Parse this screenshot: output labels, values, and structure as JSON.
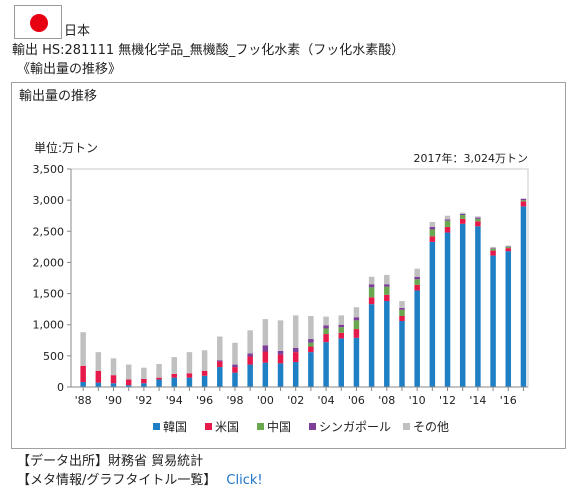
{
  "page": {
    "country": "日本",
    "hs_line": "輸出 HS:281111 無機化学品_無機酸_フッ化水素（フッ化水素酸）",
    "subtitle": "《輸出量の推移》",
    "source_label": "【データ出所】財務省 貿易統計",
    "meta_label": "【メタ情報/グラフタイトル一覧】",
    "meta_link": "Click!",
    "flag": {
      "field": "#ffffff",
      "disc": "#e60012"
    }
  },
  "chart_data": {
    "type": "bar",
    "stacked": true,
    "title": "輸出量の推移",
    "ylabel": "単位:万トン",
    "annotation": "2017年：3,024万トン",
    "ylim": [
      0,
      3500
    ],
    "yticks": [
      0,
      500,
      1000,
      1500,
      2000,
      2500,
      3000,
      3500
    ],
    "ytick_labels": [
      "0",
      "500",
      "1,000",
      "1,500",
      "2,000",
      "2,500",
      "3,000",
      "3,500"
    ],
    "grid": false,
    "legend_position": "bottom",
    "categories": [
      "1988",
      "1989",
      "1990",
      "1991",
      "1992",
      "1993",
      "1994",
      "1995",
      "1996",
      "1997",
      "1998",
      "1999",
      "2000",
      "2001",
      "2002",
      "2003",
      "2004",
      "2005",
      "2006",
      "2007",
      "2008",
      "2009",
      "2010",
      "2011",
      "2012",
      "2013",
      "2014",
      "2015",
      "2016",
      "2017"
    ],
    "x_tick_labels": [
      "'88",
      "",
      "'90",
      "",
      "'92",
      "",
      "'94",
      "",
      "'96",
      "",
      "'98",
      "",
      "'00",
      "",
      "'02",
      "",
      "'04",
      "",
      "'06",
      "",
      "'08",
      "",
      "'10",
      "",
      "'12",
      "",
      "'14",
      "",
      "'16",
      ""
    ],
    "series": [
      {
        "name": "韓国",
        "color": "#1f7fc4",
        "values": [
          80,
          70,
          60,
          30,
          60,
          120,
          150,
          150,
          180,
          320,
          230,
          360,
          390,
          380,
          400,
          560,
          720,
          780,
          790,
          1330,
          1380,
          1060,
          1550,
          2330,
          2480,
          2620,
          2580,
          2110,
          2180,
          2900
        ]
      },
      {
        "name": "米国",
        "color": "#e6194b",
        "values": [
          260,
          190,
          130,
          90,
          70,
          30,
          60,
          70,
          80,
          90,
          90,
          130,
          180,
          140,
          160,
          90,
          130,
          90,
          140,
          110,
          100,
          80,
          90,
          90,
          90,
          80,
          80,
          80,
          50,
          80
        ]
      },
      {
        "name": "中国",
        "color": "#6aa84f",
        "values": [
          0,
          0,
          0,
          0,
          0,
          0,
          0,
          0,
          0,
          0,
          0,
          0,
          0,
          0,
          0,
          60,
          90,
          90,
          140,
          160,
          130,
          100,
          90,
          110,
          100,
          60,
          40,
          30,
          20,
          20
        ]
      },
      {
        "name": "シンガポール",
        "color": "#7e3f98",
        "values": [
          0,
          0,
          0,
          0,
          0,
          0,
          0,
          0,
          0,
          20,
          40,
          50,
          100,
          60,
          70,
          60,
          50,
          40,
          50,
          50,
          40,
          30,
          40,
          40,
          20,
          20,
          20,
          10,
          10,
          20
        ]
      },
      {
        "name": "その他",
        "color": "#c0c0c0",
        "values": [
          540,
          300,
          270,
          240,
          180,
          220,
          270,
          340,
          330,
          380,
          350,
          370,
          420,
          490,
          520,
          370,
          140,
          150,
          160,
          120,
          150,
          110,
          130,
          80,
          60,
          20,
          20,
          20,
          10,
          10
        ]
      }
    ]
  }
}
